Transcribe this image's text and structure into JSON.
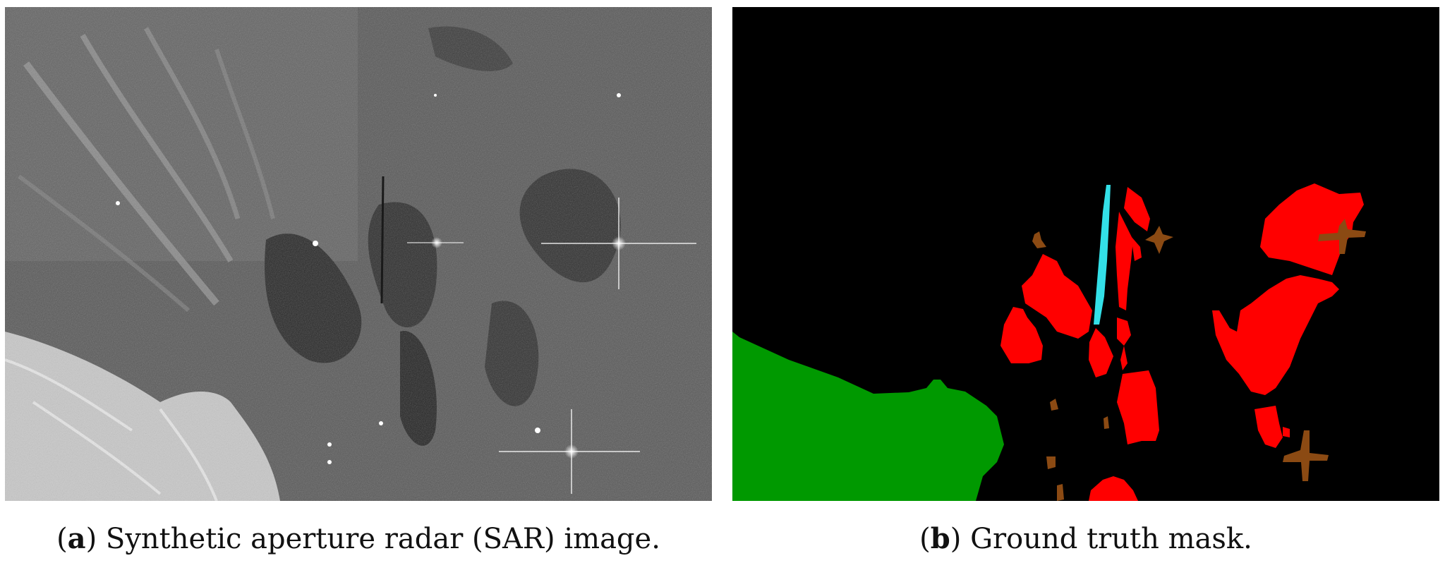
{
  "panel_a": {
    "label": "a",
    "caption": "Synthetic aperture radar (SAR) image."
  },
  "panel_b": {
    "label": "b",
    "caption": "Ground truth mask."
  },
  "colors": {
    "background": "#000000",
    "land": "#009900",
    "oil_spill": "#ff0000",
    "look_alike": "#8b4a13",
    "ship_wake": "#33e0e8",
    "sea_sar": "#5a5a5a"
  }
}
